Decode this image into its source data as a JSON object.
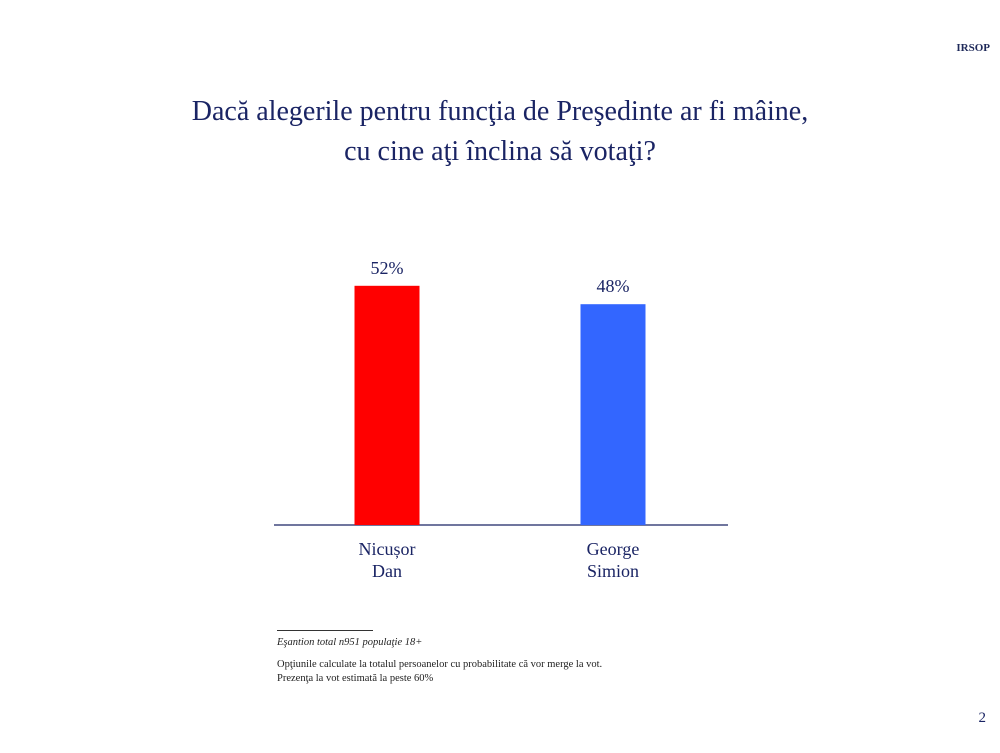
{
  "header": {
    "brand": "IRSOP"
  },
  "title_lines": [
    "Dacă alegerile pentru funcţia de Preşedinte ar fi mâine,",
    "cu cine aţi înclina să votaţi?"
  ],
  "chart_data": {
    "type": "bar",
    "title": "Dacă alegerile pentru funcţia de Preşedinte ar fi mâine, cu cine aţi înclina să votaţi?",
    "categories": [
      [
        "Nicușor",
        "Dan"
      ],
      [
        "George",
        "Simion"
      ]
    ],
    "values": [
      52,
      48
    ],
    "value_labels": [
      "52%",
      "48%"
    ],
    "colors": [
      "#ff0000",
      "#3366ff"
    ],
    "axis_color": "#1a2464",
    "xlabel": "",
    "ylabel": "",
    "ylim": [
      0,
      60
    ],
    "grid": false,
    "legend": "none"
  },
  "notes": {
    "sample": "Eşantion total n951 populaţie 18+",
    "lines": [
      "Opţiunile calculate la totalul persoanelor cu probabilitate că vor merge la vot.",
      "Prezenţa la vot estimată la peste 60%"
    ]
  },
  "page_number": "2"
}
